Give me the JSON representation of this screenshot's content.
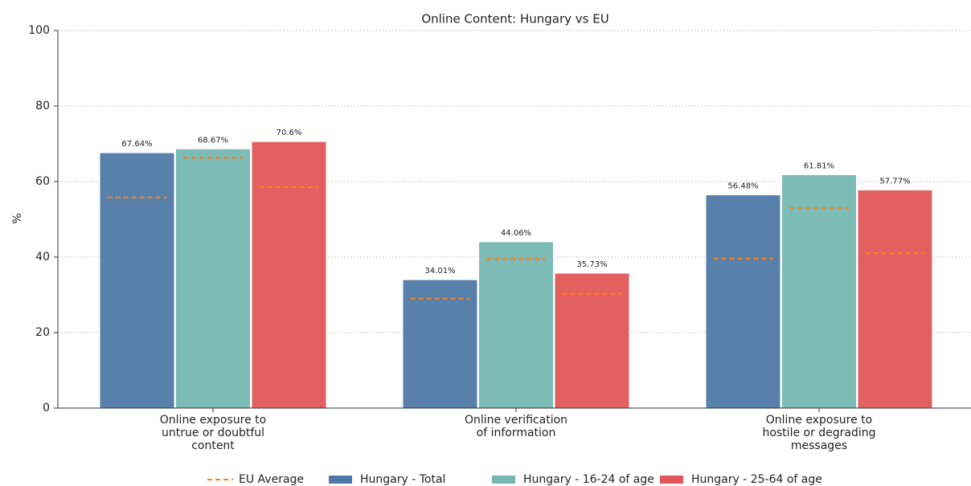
{
  "chart_data": {
    "type": "bar",
    "title": "Online Content: Hungary vs EU",
    "ylabel": "%",
    "categories": [
      [
        "Online exposure to",
        "untrue or doubtful",
        "content"
      ],
      [
        "Online verification",
        "of information"
      ],
      [
        "Online exposure to",
        "hostile or degrading",
        "messages"
      ]
    ],
    "series": [
      {
        "name": "Hungary - Total",
        "color": "#4e79a7",
        "values": [
          67.64,
          34.01,
          56.48
        ],
        "value_labels": [
          "67.64%",
          "34.01%",
          "56.48%"
        ]
      },
      {
        "name": "Hungary - 16-24 of age",
        "color": "#76b7b2",
        "values": [
          68.67,
          44.06,
          61.81
        ],
        "value_labels": [
          "68.67%",
          "44.06%",
          "61.81%"
        ]
      },
      {
        "name": "Hungary - 25-64 of age",
        "color": "#e15759",
        "values": [
          70.6,
          35.73,
          57.77
        ],
        "value_labels": [
          "70.6%",
          "35.73%",
          "57.77%"
        ]
      }
    ],
    "eu_average": {
      "name": "EU Average",
      "color": "#ff7f0e",
      "values": [
        [
          55.8,
          29,
          39.6
        ],
        [
          66.3,
          39.5,
          53
        ],
        [
          58.5,
          30.3,
          41
        ]
      ]
    },
    "ylim": [
      0,
      100
    ],
    "yticks": [
      0,
      20,
      40,
      60,
      80,
      100
    ],
    "grid": true
  }
}
